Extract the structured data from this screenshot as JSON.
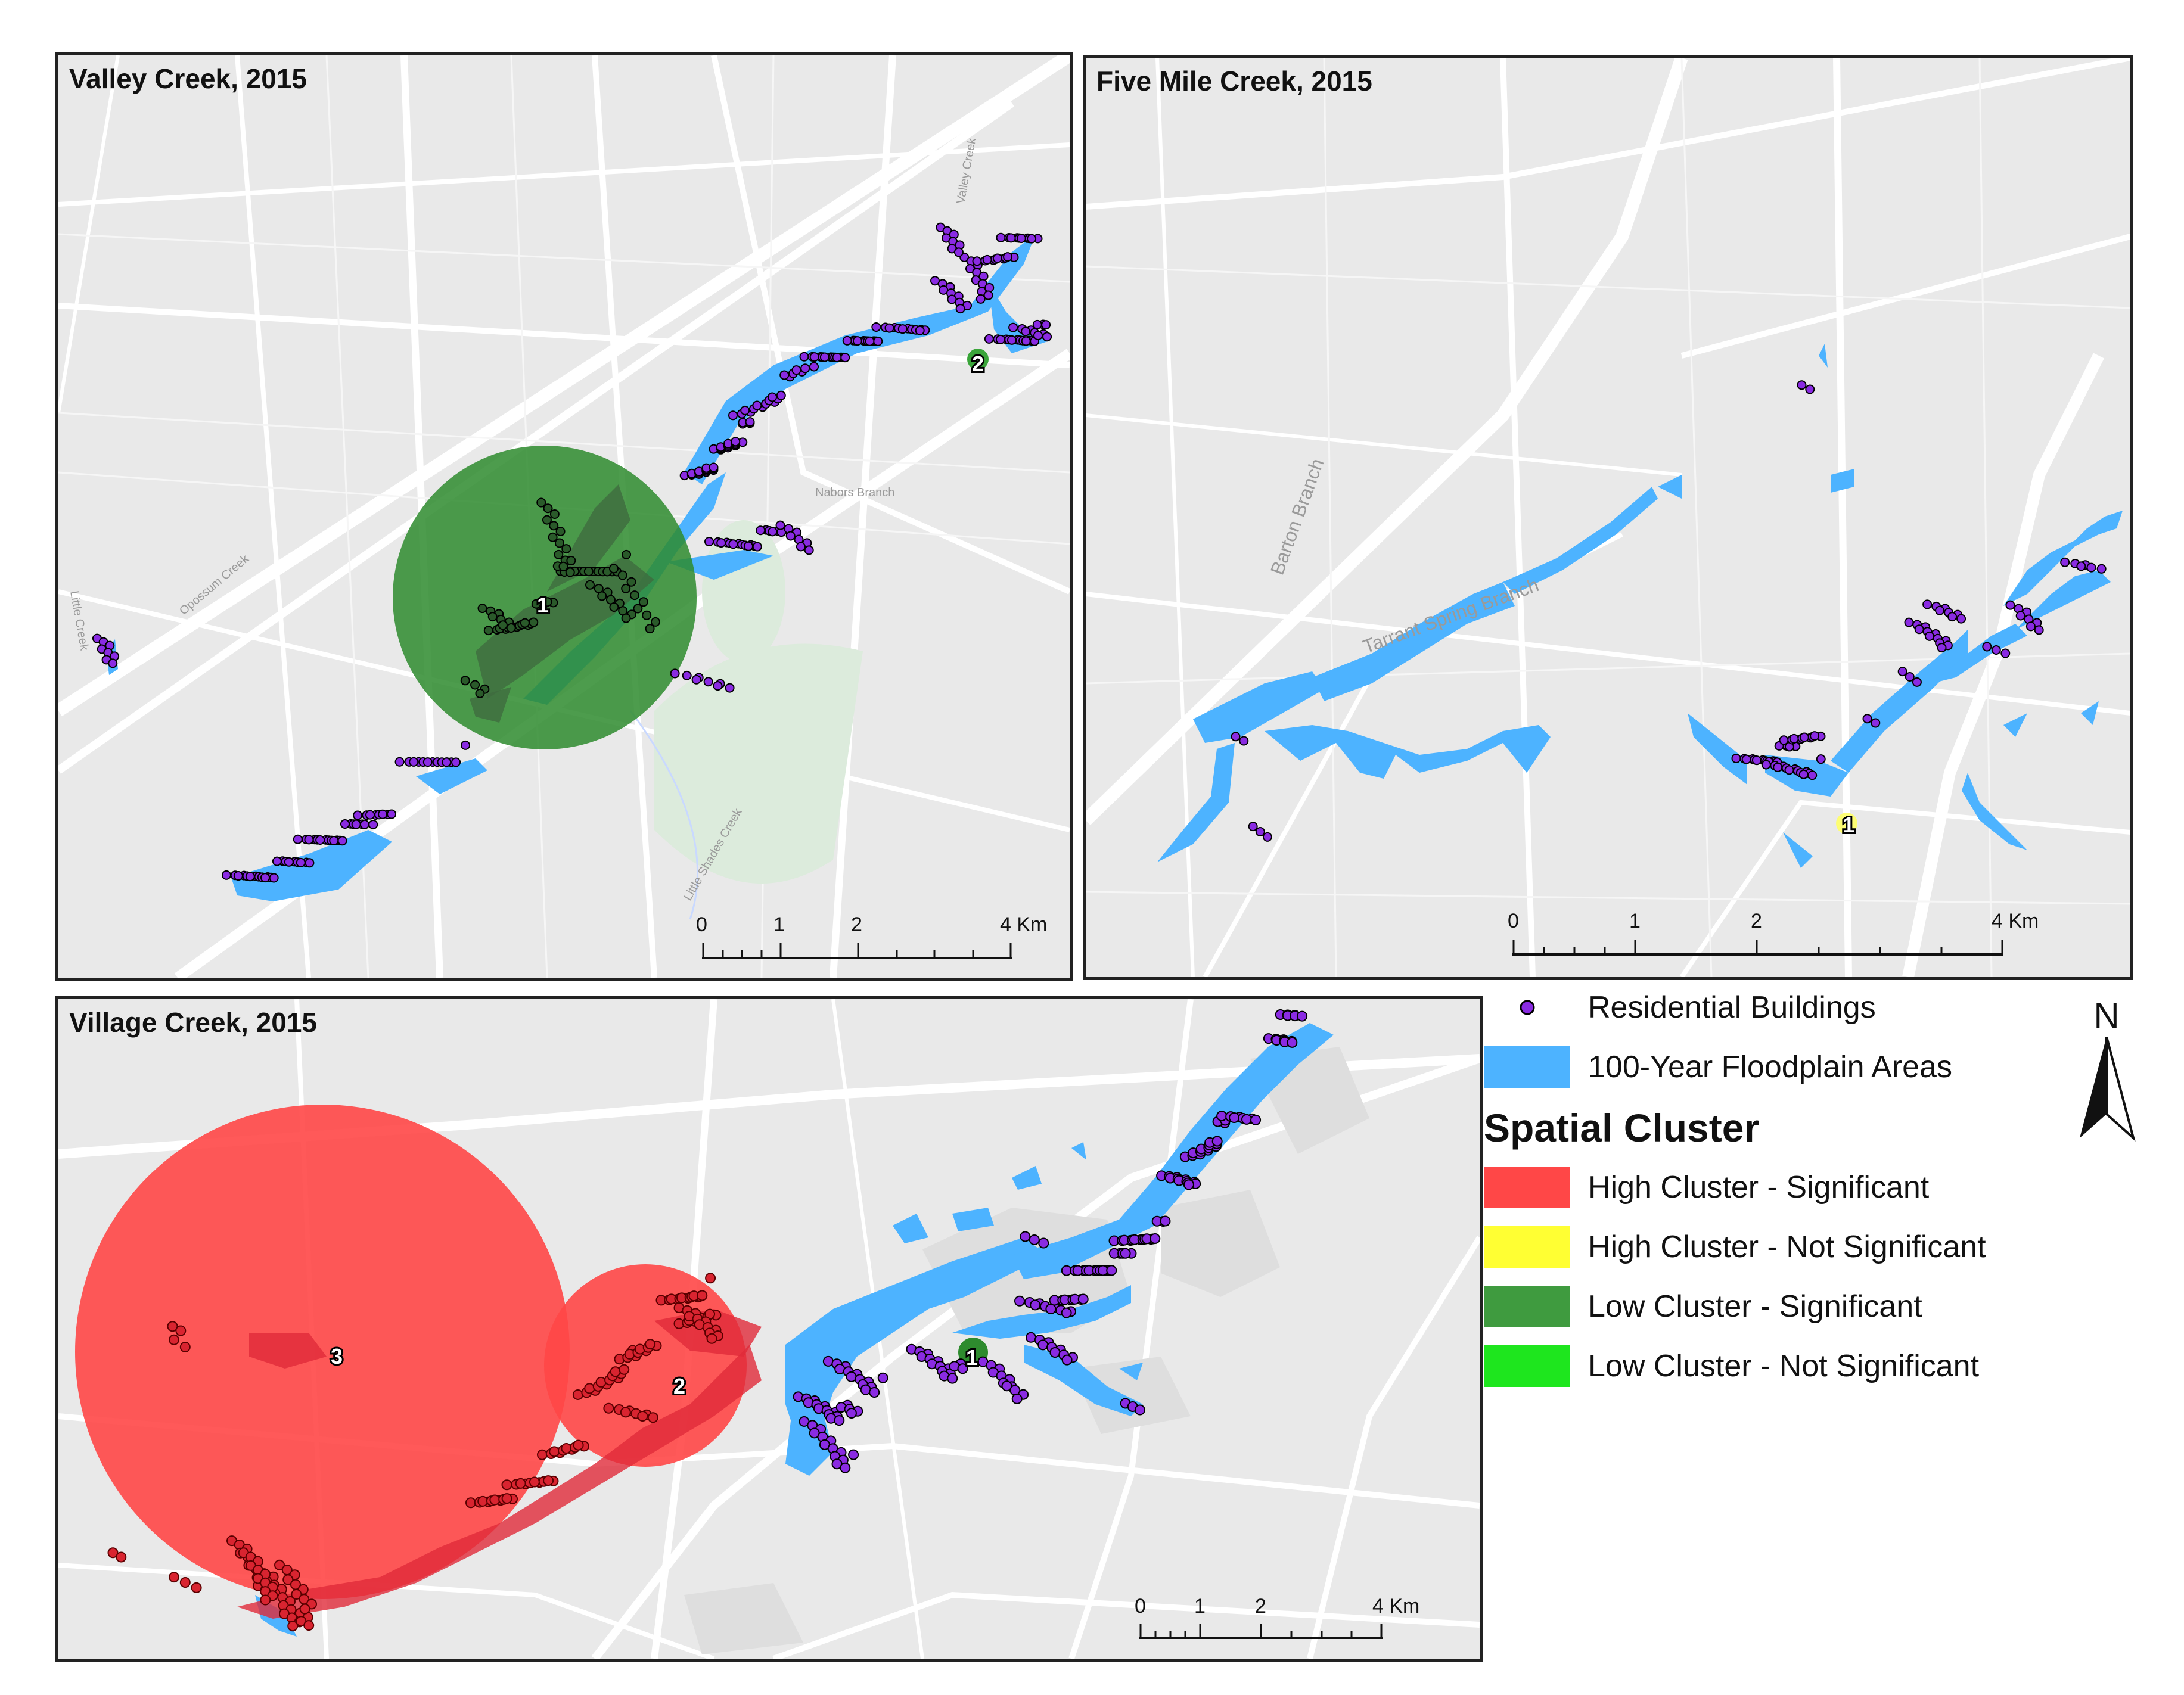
{
  "maps": {
    "valley": {
      "title": "Valley Creek, 2015",
      "place_labels": [
        "Valley Creek",
        "Nabors Branch",
        "Opossum Creek",
        "Little Creek",
        "Little Shades Creek"
      ],
      "clusters": [
        {
          "id": "1",
          "type": "Low Cluster - Significant"
        },
        {
          "id": "2",
          "type": "Low Cluster - Significant"
        }
      ],
      "scale": {
        "ticks": [
          "0",
          "1",
          "2",
          "4 Km"
        ]
      }
    },
    "fivemile": {
      "title": "Five Mile Creek, 2015",
      "place_labels": [
        "Barton Branch",
        "Tarrant Spring Branch"
      ],
      "clusters": [
        {
          "id": "1",
          "type": "High Cluster - Not Significant"
        }
      ],
      "scale": {
        "ticks": [
          "0",
          "1",
          "2",
          "4 Km"
        ]
      }
    },
    "village": {
      "title": "Village Creek, 2015",
      "clusters": [
        {
          "id": "3",
          "type": "High Cluster - Significant"
        },
        {
          "id": "2",
          "type": "High Cluster - Significant"
        },
        {
          "id": "1",
          "type": "Low Cluster - Significant"
        }
      ],
      "scale": {
        "ticks": [
          "0",
          "1",
          "2",
          "4 Km"
        ]
      }
    }
  },
  "legend": {
    "residential": "Residential Buildings",
    "floodplain": "100-Year Floodplain Areas",
    "heading": "Spatial Cluster",
    "items": [
      {
        "label": "High Cluster - Significant",
        "color": "#ff4747"
      },
      {
        "label": "High Cluster - Not Significant",
        "color": "#ffff33"
      },
      {
        "label": "Low Cluster - Significant",
        "color": "#3f9b3f"
      },
      {
        "label": "Low Cluster - Not Significant",
        "color": "#1ee61e"
      }
    ]
  },
  "north_arrow": "N",
  "colors": {
    "floodplain": "#4db3ff",
    "building": "#8a2be2",
    "basemap": "#e9e9e9",
    "roads": "#ffffff"
  }
}
